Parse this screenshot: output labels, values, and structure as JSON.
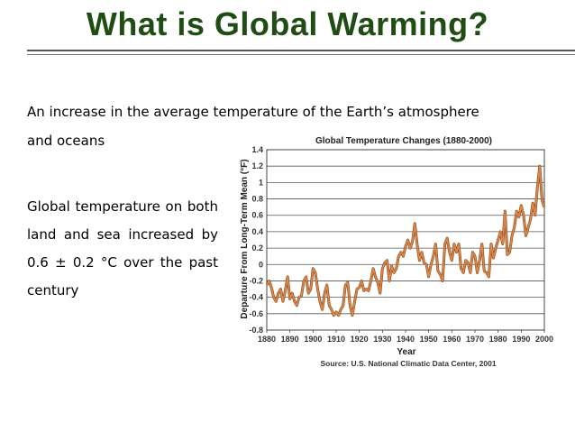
{
  "slide": {
    "title": "What is Global Warming?",
    "intro_line1": "An increase in the average temperature of the Earth’s atmosphere",
    "intro_line2": "and oceans",
    "paragraph": "Global temperature on both land and sea increased by 0.6 ± 0.2 °C over the past century"
  },
  "chart_data": {
    "type": "line",
    "title": "Global Temperature Changes (1880-2000)",
    "xlabel": "Year",
    "ylabel": "Departure From Long-Term Mean (°F)",
    "source": "Source: U.S. National Climatic Data Center, 2001",
    "xlim": [
      1880,
      2000
    ],
    "ylim": [
      -0.8,
      1.4
    ],
    "grid": true,
    "line_color": "#d9874a",
    "x_ticks": [
      "1880",
      "1890",
      "1900",
      "1910",
      "1920",
      "1930",
      "1940",
      "1950",
      "1960",
      "1970",
      "1980",
      "1990",
      "2000"
    ],
    "y_ticks": [
      "1.4",
      "1.2",
      "1",
      "0.8",
      "0.6",
      "0.4",
      "0.2",
      "0",
      "-0.2",
      "-0.4",
      "-0.6",
      "-0.8"
    ],
    "series": [
      {
        "x": [
          1880,
          1881,
          1882,
          1883,
          1884,
          1885,
          1886,
          1887,
          1888,
          1889,
          1890,
          1891,
          1892,
          1893,
          1894,
          1895,
          1896,
          1897,
          1898,
          1899,
          1900,
          1901,
          1902,
          1903,
          1904,
          1905,
          1906,
          1907,
          1908,
          1909,
          1910,
          1911,
          1912,
          1913,
          1914,
          1915,
          1916,
          1917,
          1918,
          1919,
          1920,
          1921,
          1922,
          1923,
          1924,
          1925,
          1926,
          1927,
          1928,
          1929,
          1930,
          1931,
          1932,
          1933,
          1934,
          1935,
          1936,
          1937,
          1938,
          1939,
          1940,
          1941,
          1942,
          1943,
          1944,
          1945,
          1946,
          1947,
          1948,
          1949,
          1950,
          1951,
          1952,
          1953,
          1954,
          1955,
          1956,
          1957,
          1958,
          1959,
          1960,
          1961,
          1962,
          1963,
          1964,
          1965,
          1966,
          1967,
          1968,
          1969,
          1970,
          1971,
          1972,
          1973,
          1974,
          1975,
          1976,
          1977,
          1978,
          1979,
          1980,
          1981,
          1982,
          1983,
          1984,
          1985,
          1986,
          1987,
          1988,
          1989,
          1990,
          1991,
          1992,
          1993,
          1994,
          1995,
          1996,
          1997,
          1998,
          1999,
          2000
        ],
        "values": [
          -0.25,
          -0.2,
          -0.28,
          -0.4,
          -0.45,
          -0.35,
          -0.3,
          -0.45,
          -0.32,
          -0.15,
          -0.42,
          -0.35,
          -0.45,
          -0.5,
          -0.4,
          -0.38,
          -0.2,
          -0.15,
          -0.35,
          -0.3,
          -0.05,
          -0.1,
          -0.3,
          -0.45,
          -0.55,
          -0.35,
          -0.25,
          -0.5,
          -0.55,
          -0.62,
          -0.58,
          -0.62,
          -0.55,
          -0.5,
          -0.25,
          -0.22,
          -0.5,
          -0.62,
          -0.45,
          -0.3,
          -0.28,
          -0.2,
          -0.32,
          -0.3,
          -0.32,
          -0.2,
          -0.05,
          -0.15,
          -0.22,
          -0.35,
          -0.05,
          0.02,
          0.05,
          -0.2,
          -0.02,
          -0.1,
          -0.05,
          0.1,
          0.15,
          0.1,
          0.22,
          0.3,
          0.2,
          0.28,
          0.5,
          0.25,
          0.05,
          0.15,
          0.02,
          0.0,
          -0.15,
          0.0,
          0.1,
          0.25,
          -0.08,
          -0.12,
          -0.2,
          0.25,
          0.32,
          0.15,
          0.05,
          0.25,
          0.15,
          0.25,
          -0.05,
          -0.1,
          0.05,
          0.02,
          -0.1,
          0.15,
          0.1,
          -0.1,
          0.05,
          0.25,
          -0.08,
          -0.1,
          -0.15,
          0.25,
          0.08,
          0.2,
          0.3,
          0.4,
          0.25,
          0.65,
          0.12,
          0.15,
          0.35,
          0.45,
          0.65,
          0.58,
          0.72,
          0.6,
          0.35,
          0.45,
          0.55,
          0.75,
          0.6,
          0.95,
          1.2,
          0.78,
          0.7
        ]
      }
    ]
  }
}
